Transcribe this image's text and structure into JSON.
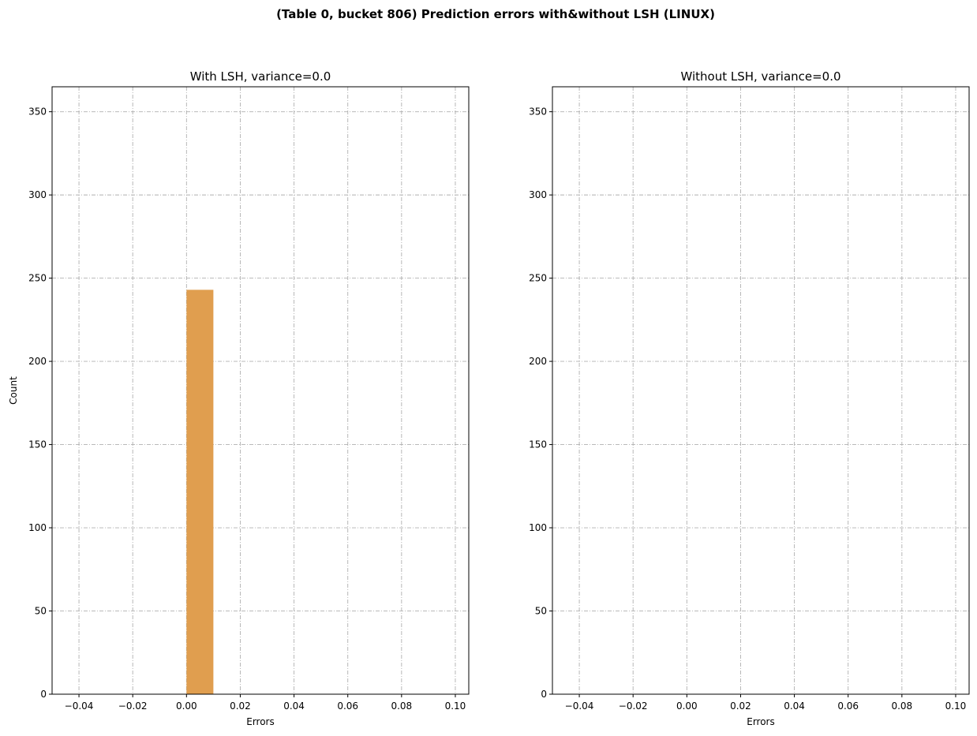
{
  "figure": {
    "suptitle": "(Table 0, bucket 806) Prediction errors with&without LSH (LINUX)"
  },
  "chart_data": [
    {
      "type": "bar",
      "title": "With LSH, variance=0.0",
      "xlabel": "Errors",
      "ylabel": "Count",
      "xlim": [
        -0.05,
        0.105
      ],
      "ylim": [
        0,
        365
      ],
      "xticks": [
        -0.04,
        -0.02,
        0.0,
        0.02,
        0.04,
        0.06,
        0.08,
        0.1
      ],
      "xtick_labels": [
        "−0.04",
        "−0.02",
        "0.00",
        "0.02",
        "0.04",
        "0.06",
        "0.08",
        "0.10"
      ],
      "yticks": [
        0,
        50,
        100,
        150,
        200,
        250,
        300,
        350
      ],
      "ytick_labels": [
        "0",
        "50",
        "100",
        "150",
        "200",
        "250",
        "300",
        "350"
      ],
      "grid": true,
      "bars": [
        {
          "x0": 0.0,
          "x1": 0.01,
          "value": 243,
          "color": "#e09e4f"
        }
      ]
    },
    {
      "type": "bar",
      "title": "Without LSH, variance=0.0",
      "xlabel": "Errors",
      "ylabel": "",
      "xlim": [
        -0.05,
        0.105
      ],
      "ylim": [
        0,
        365
      ],
      "xticks": [
        -0.04,
        -0.02,
        0.0,
        0.02,
        0.04,
        0.06,
        0.08,
        0.1
      ],
      "xtick_labels": [
        "−0.04",
        "−0.02",
        "0.00",
        "0.02",
        "0.04",
        "0.06",
        "0.08",
        "0.10"
      ],
      "yticks": [
        0,
        50,
        100,
        150,
        200,
        250,
        300,
        350
      ],
      "ytick_labels": [
        "0",
        "50",
        "100",
        "150",
        "200",
        "250",
        "300",
        "350"
      ],
      "grid": true,
      "bars": []
    }
  ]
}
